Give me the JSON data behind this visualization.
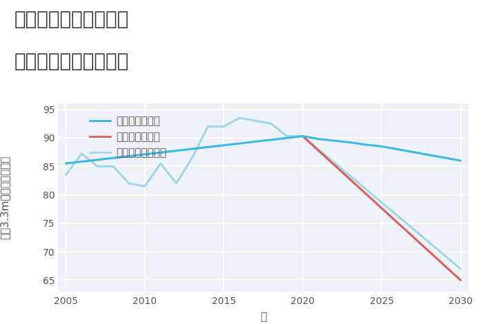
{
  "title_line1": "愛知県碧南市松江町の",
  "title_line2": "中古戸建ての価格推移",
  "xlabel": "年",
  "ylabel_tate": "平（3.3m）単価（万円）",
  "ylim": [
    63,
    96
  ],
  "xlim": [
    2004.5,
    2030.5
  ],
  "yticks": [
    65,
    70,
    75,
    80,
    85,
    90,
    95
  ],
  "xticks": [
    2005,
    2010,
    2015,
    2020,
    2025,
    2030
  ],
  "background_color": "#ffffff",
  "plot_bg_color": "#eef2f8",
  "grid_color": "#ffffff",
  "good_scenario": {
    "label": "グッドシナリオ",
    "color": "#3bb8e8",
    "linewidth": 2.2,
    "x": [
      2005,
      2020,
      2021,
      2022,
      2023,
      2024,
      2025,
      2026,
      2027,
      2028,
      2029,
      2030
    ],
    "y": [
      85.5,
      90.3,
      89.8,
      89.5,
      89.2,
      88.8,
      88.5,
      88.0,
      87.5,
      87.0,
      86.5,
      86.0
    ]
  },
  "bad_scenario": {
    "label": "バッドシナリオ",
    "color": "#d96060",
    "linewidth": 2.2,
    "x": [
      2020,
      2030
    ],
    "y": [
      90.3,
      65.0
    ]
  },
  "normal_scenario": {
    "label": "ノーマルシナリオ",
    "color": "#a0d8e8",
    "linewidth": 2.2,
    "x": [
      2005,
      2006,
      2007,
      2008,
      2009,
      2010,
      2011,
      2012,
      2013,
      2014,
      2015,
      2016,
      2017,
      2018,
      2019,
      2020,
      2030
    ],
    "y": [
      83.5,
      87.2,
      85.0,
      85.0,
      82.0,
      81.5,
      85.5,
      82.0,
      86.5,
      92.0,
      92.0,
      93.5,
      93.0,
      92.5,
      90.3,
      90.3,
      67.0
    ]
  },
  "title_fontsize": 20,
  "axis_fontsize": 11,
  "tick_fontsize": 10,
  "legend_fontsize": 11
}
